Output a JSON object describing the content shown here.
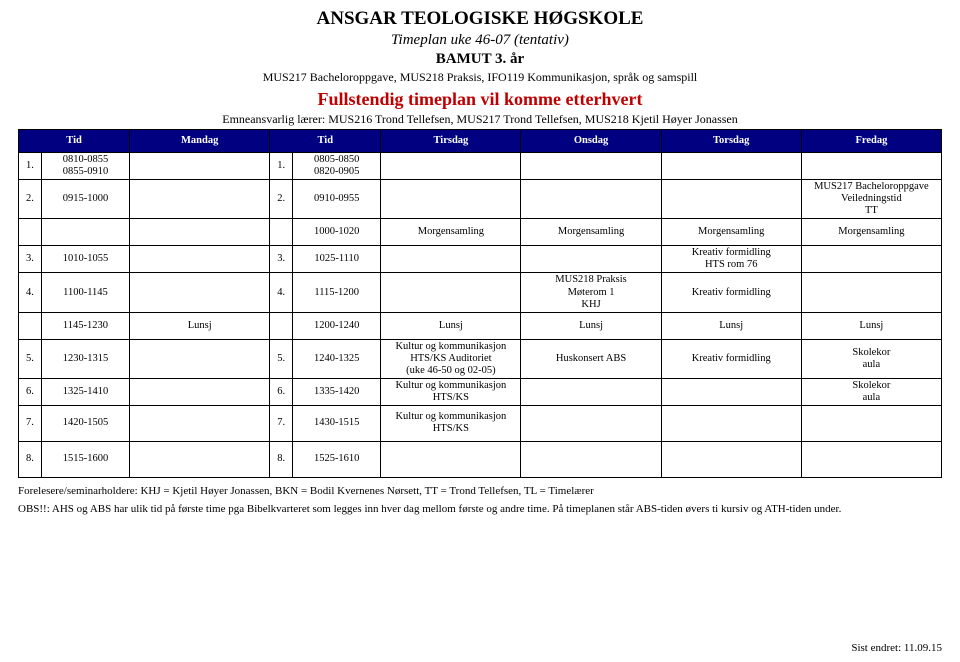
{
  "header": {
    "school": "ANSGAR TEOLOGISKE HØGSKOLE",
    "weekplan": "Timeplan uke 46-07 (tentativ)",
    "program": "BAMUT 3. år",
    "courses": "MUS217 Bacheloroppgave, MUS218 Praksis, IFO119 Kommunikasjon, språk og samspill",
    "notice": "Fullstendig timeplan vil komme etterhvert",
    "teachers": "Emneansvarlig lærer: MUS216 Trond Tellefsen, MUS217 Trond Tellefsen, MUS218 Kjetil Høyer Jonassen"
  },
  "columns": {
    "c1": "Tid",
    "c2": "Mandag",
    "c3": "Tid",
    "c4": "Tirsdag",
    "c5": "Onsdag",
    "c6": "Torsdag",
    "c7": "Fredag"
  },
  "rows": {
    "r1": {
      "n1": "1.",
      "t1": "0810-0855\n0855-0910",
      "mon": "",
      "n2": "1.",
      "t2": "0805-0850\n0820-0905",
      "tue": "",
      "wed": "",
      "thu": "",
      "fri": ""
    },
    "r2": {
      "n1": "2.",
      "t1": "0915-1000",
      "mon": "",
      "n2": "2.",
      "t2": "0910-0955",
      "tue": "",
      "wed": "",
      "thu": "",
      "fri": "MUS217 Bacheloroppgave\nVeiledningstid\nTT"
    },
    "r3": {
      "n1": "",
      "t1": "",
      "mon": "",
      "n2": "",
      "t2": "1000-1020",
      "tue": "Morgensamling",
      "wed": "Morgensamling",
      "thu": "Morgensamling",
      "fri": "Morgensamling"
    },
    "r4": {
      "n1": "3.",
      "t1": "1010-1055",
      "mon": "",
      "n2": "3.",
      "t2": "1025-1110",
      "tue": "",
      "wed": "",
      "thu": "Kreativ formidling\nHTS rom 76",
      "fri": ""
    },
    "r5": {
      "n1": "4.",
      "t1": "1100-1145",
      "mon": "",
      "n2": "4.",
      "t2": "1115-1200",
      "tue": "",
      "wed": "MUS218 Praksis\nMøterom 1\nKHJ",
      "thu": "Kreativ formidling",
      "fri": ""
    },
    "r6": {
      "n1": "",
      "t1": "1145-1230",
      "mon": "Lunsj",
      "n2": "",
      "t2": "1200-1240",
      "tue": "Lunsj",
      "wed": "Lunsj",
      "thu": "Lunsj",
      "fri": "Lunsj"
    },
    "r7": {
      "n1": "5.",
      "t1": "1230-1315",
      "mon": "",
      "n2": "5.",
      "t2": "1240-1325",
      "tue": "Kultur og kommunikasjon\nHTS/KS Auditoriet\n(uke 46-50 og 02-05)",
      "wed": "Huskonsert ABS",
      "thu": "Kreativ formidling",
      "fri": "Skolekor\naula"
    },
    "r8": {
      "n1": "6.",
      "t1": "1325-1410",
      "mon": "",
      "n2": "6.",
      "t2": "1335-1420",
      "tue": "Kultur og kommunikasjon\nHTS/KS",
      "wed": "",
      "thu": "",
      "fri": "Skolekor\naula"
    },
    "r9": {
      "n1": "7.",
      "t1": "1420-1505",
      "mon": "",
      "n2": "7.",
      "t2": "1430-1515",
      "tue": "Kultur og kommunikasjon\nHTS/KS",
      "wed": "",
      "thu": "",
      "fri": ""
    },
    "r10": {
      "n1": "8.",
      "t1": "1515-1600",
      "mon": "",
      "n2": "8.",
      "t2": "1525-1610",
      "tue": "",
      "wed": "",
      "thu": "",
      "fri": ""
    }
  },
  "notes": {
    "line1": "Forelesere/seminarholdere: KHJ = Kjetil Høyer Jonassen, BKN = Bodil Kvernenes Nørsett, TT = Trond Tellefsen, TL = Timelærer",
    "line2": "OBS!!: AHS og ABS har ulik tid på første time pga Bibelkvarteret som legges inn hver dag mellom første og andre time. På timeplanen står ABS-tiden øvers ti kursiv og ATH-tiden under.",
    "lastmod": "Sist endret: 11.09.15"
  },
  "style": {
    "header_bg": "#000080",
    "header_fg": "#ffffff",
    "border": "#000000",
    "notice_color": "#c00000",
    "font": "Times New Roman"
  }
}
